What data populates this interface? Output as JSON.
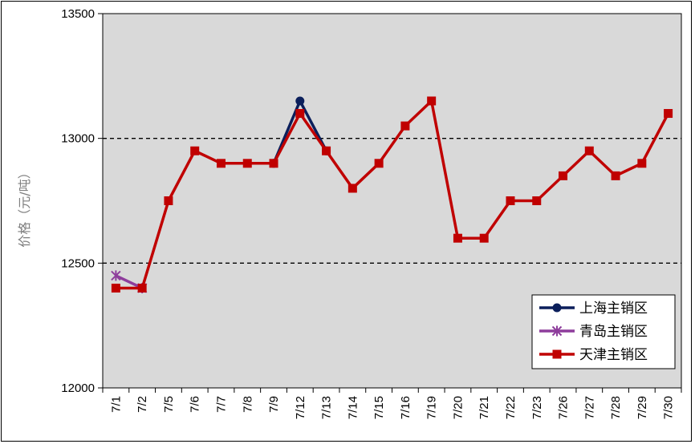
{
  "chart_data": {
    "type": "line",
    "title": "",
    "xlabel": "",
    "ylabel": "价格（元/吨）",
    "ylim": [
      12000,
      13500
    ],
    "yticks": [
      12000,
      12500,
      13000,
      13500
    ],
    "grid": "dashed horizontal at 12500 and 13000",
    "legend_position": "bottom-right",
    "background": "#d9d9d9",
    "categories": [
      "7/1",
      "7/2",
      "7/5",
      "7/6",
      "7/7",
      "7/8",
      "7/9",
      "7/12",
      "7/13",
      "7/14",
      "7/15",
      "7/16",
      "7/19",
      "7/20",
      "7/21",
      "7/22",
      "7/23",
      "7/26",
      "7/27",
      "7/28",
      "7/29",
      "7/30"
    ],
    "series": [
      {
        "name": "上海主销区",
        "color": "#0b1f5b",
        "marker": "circle",
        "values": [
          null,
          null,
          null,
          null,
          null,
          null,
          12900,
          13150,
          12950,
          null,
          null,
          null,
          null,
          null,
          null,
          null,
          null,
          null,
          null,
          null,
          null,
          null
        ]
      },
      {
        "name": "青岛主销区",
        "color": "#8e3d9c",
        "marker": "star",
        "values": [
          12450,
          12400,
          null,
          null,
          null,
          null,
          null,
          null,
          null,
          null,
          null,
          null,
          null,
          null,
          null,
          null,
          null,
          null,
          null,
          null,
          null,
          null
        ]
      },
      {
        "name": "天津主销区",
        "color": "#c00000",
        "marker": "square",
        "values": [
          12400,
          12400,
          12750,
          12950,
          12900,
          12900,
          12900,
          13100,
          12950,
          12800,
          12900,
          13050,
          13150,
          12600,
          12600,
          12750,
          12750,
          12850,
          12950,
          12850,
          12900,
          13100
        ]
      }
    ]
  }
}
